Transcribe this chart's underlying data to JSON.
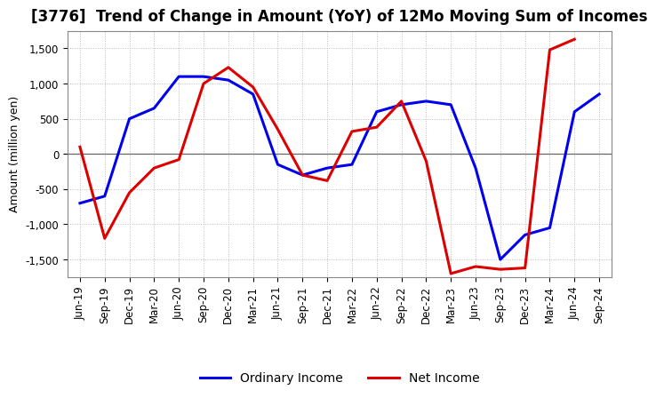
{
  "title": "[3776]  Trend of Change in Amount (YoY) of 12Mo Moving Sum of Incomes",
  "ylabel": "Amount (million yen)",
  "x_labels": [
    "Jun-19",
    "Sep-19",
    "Dec-19",
    "Mar-20",
    "Jun-20",
    "Sep-20",
    "Dec-20",
    "Mar-21",
    "Jun-21",
    "Sep-21",
    "Dec-21",
    "Mar-22",
    "Jun-22",
    "Sep-22",
    "Dec-22",
    "Mar-23",
    "Jun-23",
    "Sep-23",
    "Dec-23",
    "Mar-24",
    "Jun-24",
    "Sep-24"
  ],
  "ordinary_income": [
    -700,
    -600,
    500,
    650,
    1100,
    1100,
    1050,
    850,
    -150,
    -300,
    -200,
    -150,
    600,
    700,
    750,
    700,
    -200,
    -1500,
    -1150,
    -1050,
    600,
    850
  ],
  "net_income": [
    100,
    -1200,
    -550,
    -200,
    -80,
    1000,
    1230,
    950,
    350,
    -300,
    -380,
    320,
    380,
    750,
    -100,
    -1700,
    -1600,
    -1640,
    -1620,
    1480,
    1630,
    null
  ],
  "ordinary_income_color": "#0000ee",
  "net_income_color": "#dd0000",
  "line_width": 2.2,
  "ylim": [
    -1750,
    1750
  ],
  "yticks": [
    -1500,
    -1000,
    -500,
    0,
    500,
    1000,
    1500
  ],
  "grid_color": "#bbbbbb",
  "background_color": "#ffffff",
  "plot_bg_color": "#ffffff",
  "legend_labels": [
    "Ordinary Income",
    "Net Income"
  ],
  "title_fontsize": 12,
  "tick_fontsize": 8.5,
  "ylabel_fontsize": 9
}
